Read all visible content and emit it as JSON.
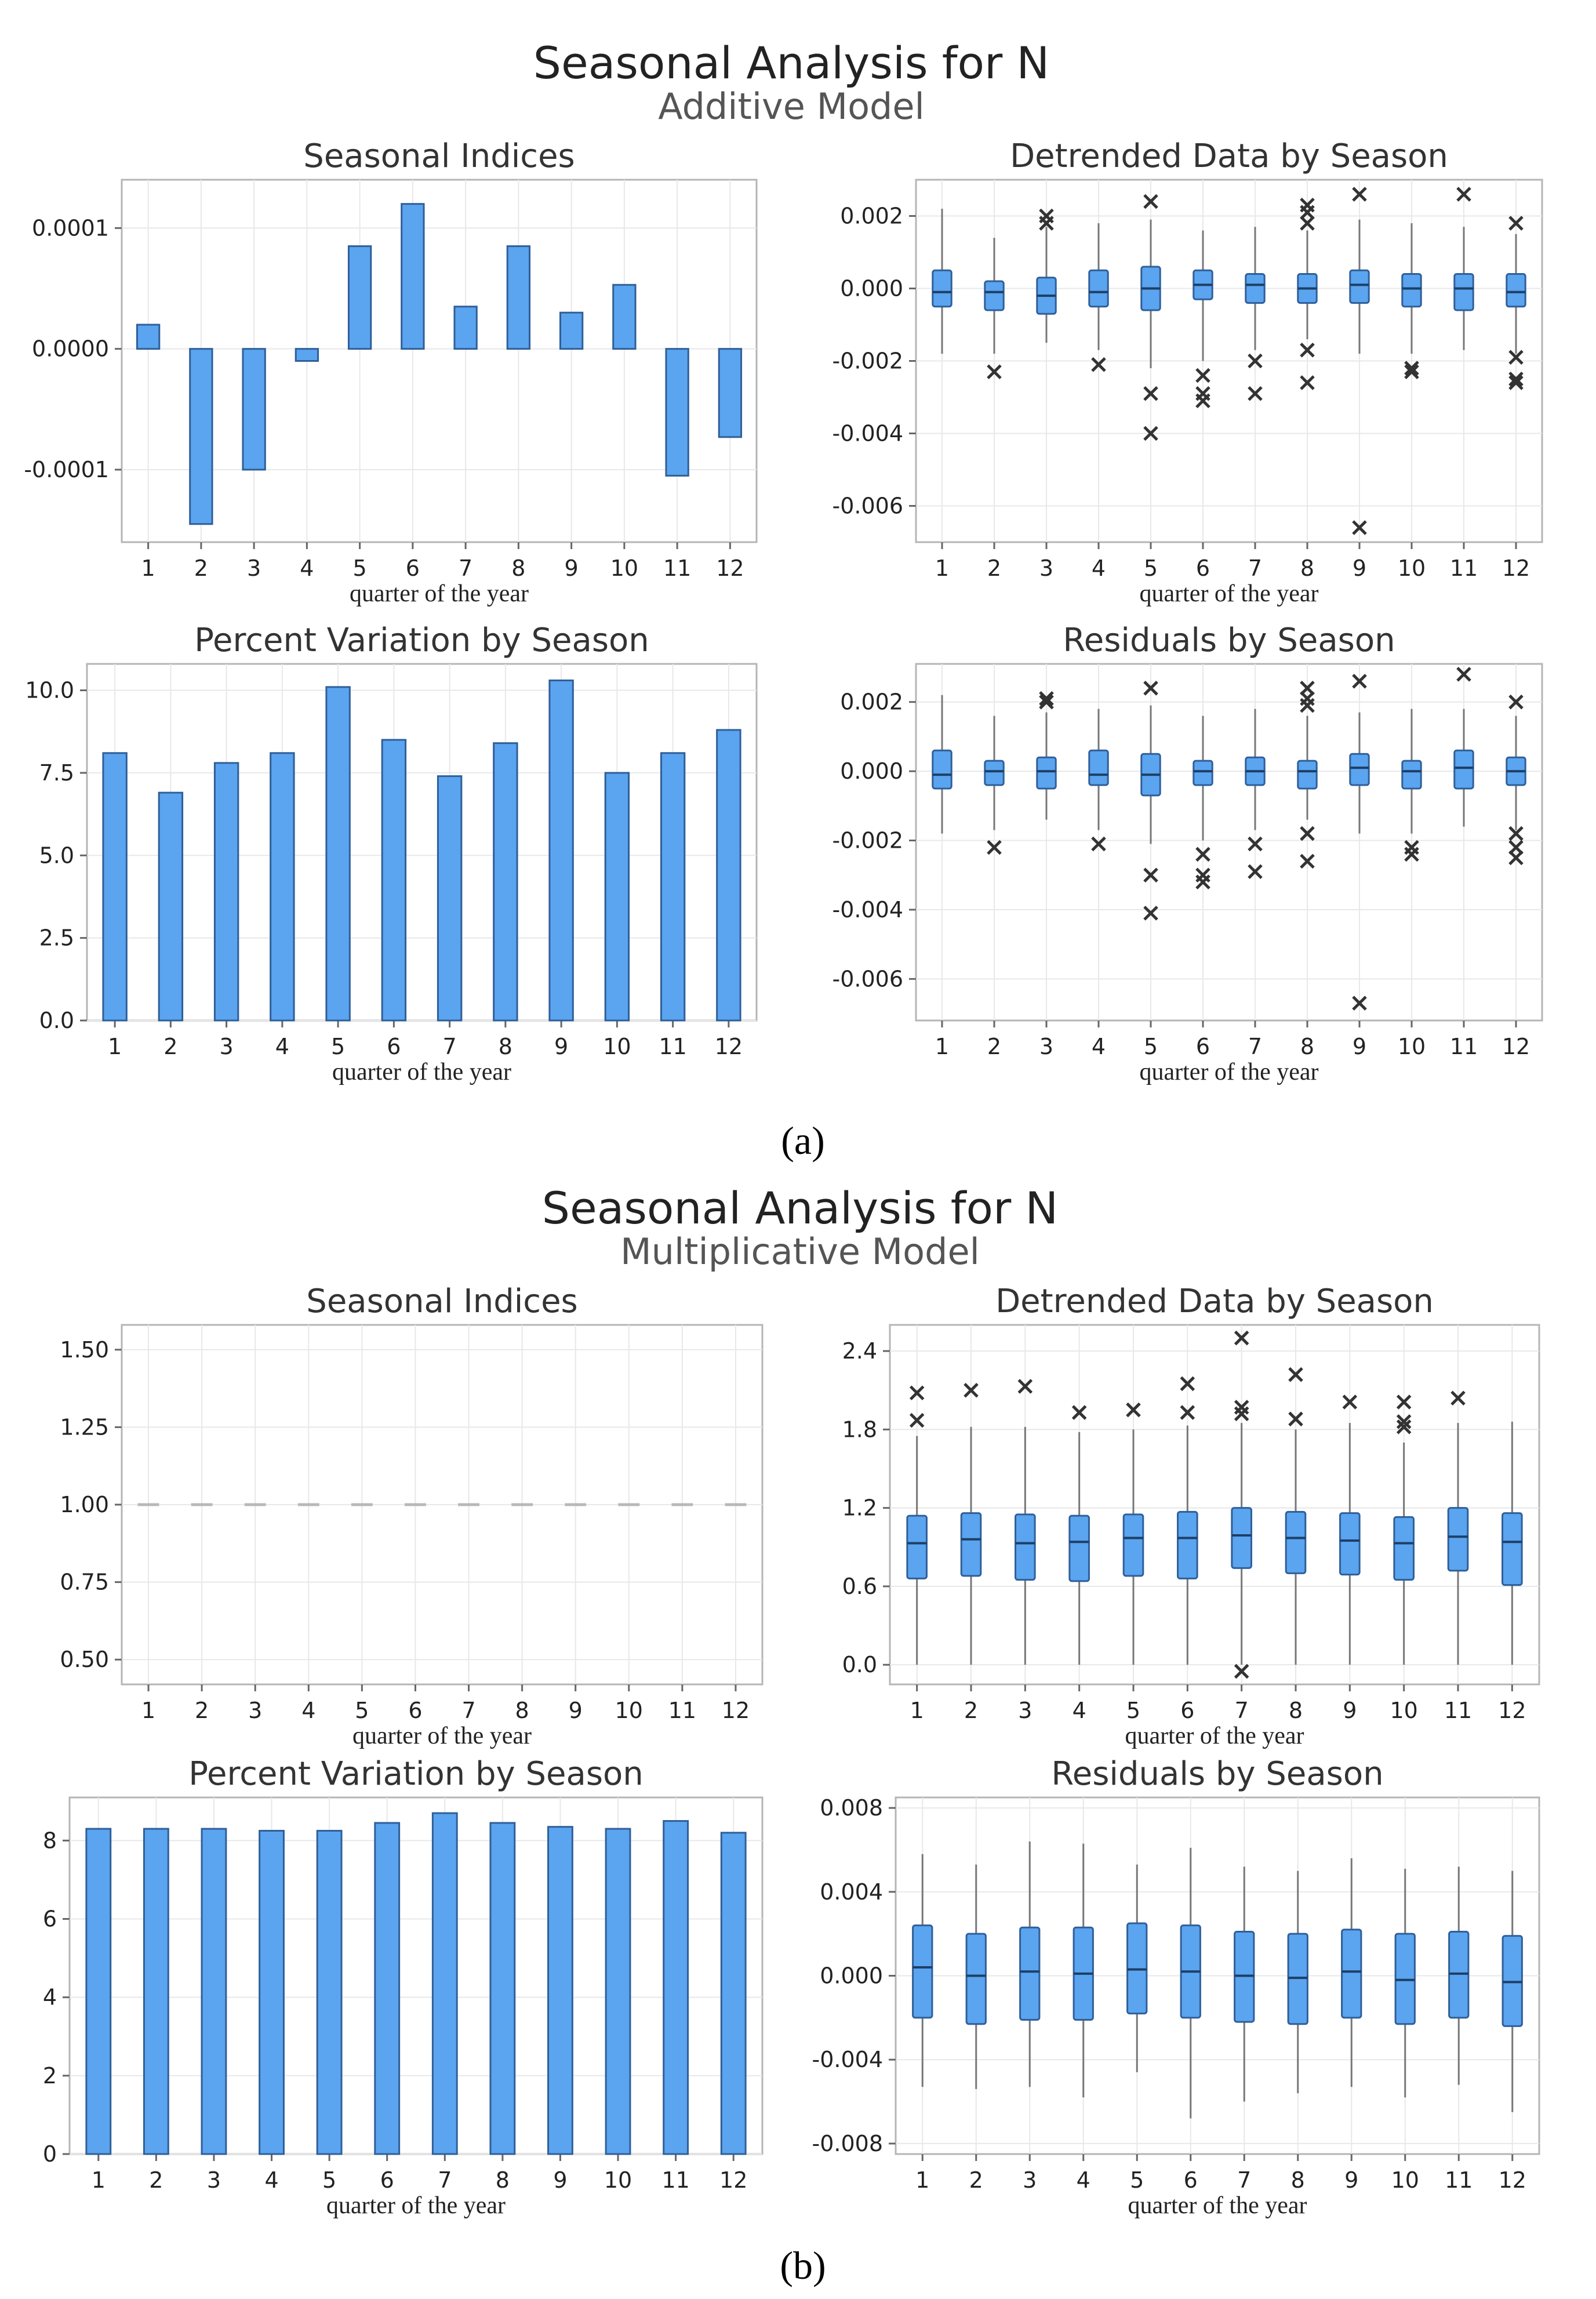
{
  "figure": {
    "label_a": "(a)",
    "label_b": "(b)"
  },
  "panel_a": {
    "title": "Seasonal Analysis for N",
    "subtitle": "Additive Model"
  },
  "panel_b": {
    "title": "Seasonal Analysis for N",
    "subtitle": "Multiplicative Model"
  },
  "chart_data": [
    {
      "id": "a_indices",
      "type": "bar",
      "title": "Seasonal Indices",
      "xlabel": "quarter of the year",
      "ylabel": "",
      "categories": [
        "1",
        "2",
        "3",
        "4",
        "5",
        "6",
        "7",
        "8",
        "9",
        "10",
        "11",
        "12"
      ],
      "values": [
        2e-05,
        -0.000145,
        -0.0001,
        -1e-05,
        8.5e-05,
        0.00012,
        3.5e-05,
        8.5e-05,
        3e-05,
        5.3e-05,
        -0.000105,
        -7.3e-05
      ],
      "ylim": [
        -0.00016,
        0.00014
      ],
      "yticks": [
        -0.0001,
        0.0,
        0.0001
      ],
      "ytick_labels": [
        "-0.0001",
        "0.0000",
        "0.0001"
      ]
    },
    {
      "id": "a_detrended",
      "type": "box",
      "title": "Detrended Data by Season",
      "xlabel": "quarter of the year",
      "categories": [
        "1",
        "2",
        "3",
        "4",
        "5",
        "6",
        "7",
        "8",
        "9",
        "10",
        "11",
        "12"
      ],
      "boxes": [
        {
          "whislo": -0.0018,
          "q1": -0.0005,
          "med": -0.0001,
          "q3": 0.0005,
          "whishi": 0.0022,
          "fliers": []
        },
        {
          "whislo": -0.0018,
          "q1": -0.0006,
          "med": -0.0001,
          "q3": 0.0002,
          "whishi": 0.0014,
          "fliers": [
            -0.0023
          ]
        },
        {
          "whislo": -0.0015,
          "q1": -0.0007,
          "med": -0.0002,
          "q3": 0.0003,
          "whishi": 0.0017,
          "fliers": [
            0.0018,
            0.002
          ]
        },
        {
          "whislo": -0.0017,
          "q1": -0.0005,
          "med": -0.0001,
          "q3": 0.0005,
          "whishi": 0.0018,
          "fliers": [
            -0.0021
          ]
        },
        {
          "whislo": -0.0022,
          "q1": -0.0006,
          "med": 0.0,
          "q3": 0.0006,
          "whishi": 0.0019,
          "fliers": [
            0.0024,
            -0.0029,
            -0.004
          ]
        },
        {
          "whislo": -0.002,
          "q1": -0.0003,
          "med": 0.0001,
          "q3": 0.0005,
          "whishi": 0.0016,
          "fliers": [
            -0.0024,
            -0.0029,
            -0.0031
          ]
        },
        {
          "whislo": -0.0017,
          "q1": -0.0004,
          "med": 0.0001,
          "q3": 0.0004,
          "whishi": 0.0017,
          "fliers": [
            -0.002,
            -0.0029
          ]
        },
        {
          "whislo": -0.0014,
          "q1": -0.0004,
          "med": 0.0,
          "q3": 0.0004,
          "whishi": 0.0016,
          "fliers": [
            0.0018,
            0.0021,
            0.0023,
            -0.0017,
            -0.0026
          ]
        },
        {
          "whislo": -0.0018,
          "q1": -0.0004,
          "med": 0.0001,
          "q3": 0.0005,
          "whishi": 0.0019,
          "fliers": [
            0.0026,
            -0.0066
          ]
        },
        {
          "whislo": -0.0018,
          "q1": -0.0005,
          "med": 0.0,
          "q3": 0.0004,
          "whishi": 0.0018,
          "fliers": [
            -0.0022,
            -0.0023
          ]
        },
        {
          "whislo": -0.0017,
          "q1": -0.0006,
          "med": 0.0,
          "q3": 0.0004,
          "whishi": 0.0017,
          "fliers": [
            0.0026
          ]
        },
        {
          "whislo": -0.0018,
          "q1": -0.0005,
          "med": -0.0001,
          "q3": 0.0004,
          "whishi": 0.0015,
          "fliers": [
            0.0018,
            -0.0019,
            -0.0025,
            -0.0026
          ]
        }
      ],
      "ylim": [
        -0.007,
        0.003
      ],
      "yticks": [
        -0.006,
        -0.004,
        -0.002,
        0.0,
        0.002
      ],
      "ytick_labels": [
        "-0.006",
        "-0.004",
        "-0.002",
        "0.000",
        "0.002"
      ]
    },
    {
      "id": "a_percent",
      "type": "bar",
      "title": "Percent Variation by Season",
      "xlabel": "quarter of the year",
      "categories": [
        "1",
        "2",
        "3",
        "4",
        "5",
        "6",
        "7",
        "8",
        "9",
        "10",
        "11",
        "12"
      ],
      "values": [
        8.1,
        6.9,
        7.8,
        8.1,
        10.1,
        8.5,
        7.4,
        8.4,
        10.3,
        7.5,
        8.1,
        8.8
      ],
      "ylim": [
        0,
        10.8
      ],
      "yticks": [
        0.0,
        2.5,
        5.0,
        7.5,
        10.0
      ],
      "ytick_labels": [
        "0.0",
        "2.5",
        "5.0",
        "7.5",
        "10.0"
      ]
    },
    {
      "id": "a_residuals",
      "type": "box",
      "title": "Residuals by Season",
      "xlabel": "quarter of the year",
      "categories": [
        "1",
        "2",
        "3",
        "4",
        "5",
        "6",
        "7",
        "8",
        "9",
        "10",
        "11",
        "12"
      ],
      "boxes": [
        {
          "whislo": -0.0018,
          "q1": -0.0005,
          "med": -0.0001,
          "q3": 0.0006,
          "whishi": 0.0022,
          "fliers": []
        },
        {
          "whislo": -0.0017,
          "q1": -0.0004,
          "med": 0.0,
          "q3": 0.0003,
          "whishi": 0.0016,
          "fliers": [
            -0.0022
          ]
        },
        {
          "whislo": -0.0014,
          "q1": -0.0005,
          "med": 0.0,
          "q3": 0.0004,
          "whishi": 0.0017,
          "fliers": [
            0.002,
            0.0021
          ]
        },
        {
          "whislo": -0.0017,
          "q1": -0.0004,
          "med": -0.0001,
          "q3": 0.0006,
          "whishi": 0.0018,
          "fliers": [
            -0.0021
          ]
        },
        {
          "whislo": -0.0021,
          "q1": -0.0007,
          "med": -0.0001,
          "q3": 0.0005,
          "whishi": 0.0019,
          "fliers": [
            0.0024,
            -0.003,
            -0.0041
          ]
        },
        {
          "whislo": -0.002,
          "q1": -0.0004,
          "med": 0.0,
          "q3": 0.0003,
          "whishi": 0.0016,
          "fliers": [
            -0.0024,
            -0.003,
            -0.0032
          ]
        },
        {
          "whislo": -0.0017,
          "q1": -0.0004,
          "med": 0.0,
          "q3": 0.0004,
          "whishi": 0.0018,
          "fliers": [
            -0.0021,
            -0.0029
          ]
        },
        {
          "whislo": -0.0014,
          "q1": -0.0005,
          "med": 0.0,
          "q3": 0.0003,
          "whishi": 0.0016,
          "fliers": [
            0.0019,
            0.0021,
            0.0024,
            -0.0018,
            -0.0026
          ]
        },
        {
          "whislo": -0.0018,
          "q1": -0.0004,
          "med": 0.0001,
          "q3": 0.0005,
          "whishi": 0.0017,
          "fliers": [
            0.0026,
            -0.0067
          ]
        },
        {
          "whislo": -0.0018,
          "q1": -0.0005,
          "med": 0.0,
          "q3": 0.0003,
          "whishi": 0.0018,
          "fliers": [
            -0.0022,
            -0.0024
          ]
        },
        {
          "whislo": -0.0016,
          "q1": -0.0005,
          "med": 0.0001,
          "q3": 0.0006,
          "whishi": 0.0018,
          "fliers": [
            0.0028
          ]
        },
        {
          "whislo": -0.0017,
          "q1": -0.0004,
          "med": 0.0,
          "q3": 0.0004,
          "whishi": 0.0016,
          "fliers": [
            0.002,
            -0.0018,
            -0.0022,
            -0.0025
          ]
        }
      ],
      "ylim": [
        -0.0072,
        0.0031
      ],
      "yticks": [
        -0.006,
        -0.004,
        -0.002,
        0.0,
        0.002
      ],
      "ytick_labels": [
        "-0.006",
        "-0.004",
        "-0.002",
        "0.000",
        "0.002"
      ]
    },
    {
      "id": "b_indices",
      "type": "line",
      "title": "Seasonal Indices",
      "xlabel": "quarter of the year",
      "categories": [
        "1",
        "2",
        "3",
        "4",
        "5",
        "6",
        "7",
        "8",
        "9",
        "10",
        "11",
        "12"
      ],
      "values": [
        1.0,
        1.0,
        1.0,
        1.0,
        1.0,
        1.0,
        1.0,
        1.0,
        1.0,
        1.0,
        1.0,
        1.0
      ],
      "ylim": [
        0.42,
        1.58
      ],
      "yticks": [
        0.5,
        0.75,
        1.0,
        1.25,
        1.5
      ],
      "ytick_labels": [
        "0.50",
        "0.75",
        "1.00",
        "1.25",
        "1.50"
      ]
    },
    {
      "id": "b_detrended",
      "type": "box",
      "title": "Detrended Data by Season",
      "xlabel": "quarter of the year",
      "categories": [
        "1",
        "2",
        "3",
        "4",
        "5",
        "6",
        "7",
        "8",
        "9",
        "10",
        "11",
        "12"
      ],
      "boxes": [
        {
          "whislo": 0.0,
          "q1": 0.66,
          "med": 0.93,
          "q3": 1.14,
          "whishi": 1.75,
          "fliers": [
            1.87,
            2.08
          ]
        },
        {
          "whislo": 0.0,
          "q1": 0.68,
          "med": 0.96,
          "q3": 1.16,
          "whishi": 1.82,
          "fliers": [
            2.1
          ]
        },
        {
          "whislo": 0.0,
          "q1": 0.65,
          "med": 0.93,
          "q3": 1.15,
          "whishi": 1.82,
          "fliers": [
            2.13
          ]
        },
        {
          "whislo": 0.0,
          "q1": 0.64,
          "med": 0.94,
          "q3": 1.14,
          "whishi": 1.78,
          "fliers": [
            1.93
          ]
        },
        {
          "whislo": 0.0,
          "q1": 0.68,
          "med": 0.97,
          "q3": 1.15,
          "whishi": 1.8,
          "fliers": [
            1.95
          ]
        },
        {
          "whislo": 0.0,
          "q1": 0.66,
          "med": 0.97,
          "q3": 1.17,
          "whishi": 1.83,
          "fliers": [
            1.93,
            2.15
          ]
        },
        {
          "whislo": 0.0,
          "q1": 0.74,
          "med": 0.99,
          "q3": 1.2,
          "whishi": 1.85,
          "fliers": [
            1.92,
            1.97,
            2.5,
            -0.05
          ]
        },
        {
          "whislo": 0.0,
          "q1": 0.7,
          "med": 0.97,
          "q3": 1.17,
          "whishi": 1.8,
          "fliers": [
            1.88,
            2.22
          ]
        },
        {
          "whislo": 0.0,
          "q1": 0.69,
          "med": 0.95,
          "q3": 1.16,
          "whishi": 1.85,
          "fliers": [
            2.01
          ]
        },
        {
          "whislo": 0.0,
          "q1": 0.65,
          "med": 0.93,
          "q3": 1.13,
          "whishi": 1.7,
          "fliers": [
            1.82,
            1.86,
            2.01
          ]
        },
        {
          "whislo": 0.0,
          "q1": 0.72,
          "med": 0.98,
          "q3": 1.2,
          "whishi": 1.85,
          "fliers": [
            2.04
          ]
        },
        {
          "whislo": 0.0,
          "q1": 0.61,
          "med": 0.94,
          "q3": 1.16,
          "whishi": 1.86,
          "fliers": []
        }
      ],
      "ylim": [
        -0.15,
        2.6
      ],
      "yticks": [
        0.0,
        0.6,
        1.2,
        1.8,
        2.4
      ],
      "ytick_labels": [
        "0.0",
        "0.6",
        "1.2",
        "1.8",
        "2.4"
      ]
    },
    {
      "id": "b_percent",
      "type": "bar",
      "title": "Percent Variation by Season",
      "xlabel": "quarter of the year",
      "categories": [
        "1",
        "2",
        "3",
        "4",
        "5",
        "6",
        "7",
        "8",
        "9",
        "10",
        "11",
        "12"
      ],
      "values": [
        8.3,
        8.3,
        8.3,
        8.25,
        8.25,
        8.45,
        8.7,
        8.45,
        8.35,
        8.3,
        8.5,
        8.2
      ],
      "ylim": [
        0,
        9.1
      ],
      "yticks": [
        0,
        2,
        4,
        6,
        8
      ],
      "ytick_labels": [
        "0",
        "2",
        "4",
        "6",
        "8"
      ]
    },
    {
      "id": "b_residuals",
      "type": "box",
      "title": "Residuals by Season",
      "xlabel": "quarter of the year",
      "categories": [
        "1",
        "2",
        "3",
        "4",
        "5",
        "6",
        "7",
        "8",
        "9",
        "10",
        "11",
        "12"
      ],
      "boxes": [
        {
          "whislo": -0.0053,
          "q1": -0.002,
          "med": 0.0004,
          "q3": 0.0024,
          "whishi": 0.0058,
          "fliers": []
        },
        {
          "whislo": -0.0054,
          "q1": -0.0023,
          "med": 0.0,
          "q3": 0.002,
          "whishi": 0.0053,
          "fliers": []
        },
        {
          "whislo": -0.0053,
          "q1": -0.0021,
          "med": 0.0002,
          "q3": 0.0023,
          "whishi": 0.0064,
          "fliers": []
        },
        {
          "whislo": -0.0058,
          "q1": -0.0021,
          "med": 0.0001,
          "q3": 0.0023,
          "whishi": 0.0063,
          "fliers": []
        },
        {
          "whislo": -0.0046,
          "q1": -0.0018,
          "med": 0.0003,
          "q3": 0.0025,
          "whishi": 0.0053,
          "fliers": []
        },
        {
          "whislo": -0.0068,
          "q1": -0.002,
          "med": 0.0002,
          "q3": 0.0024,
          "whishi": 0.0061,
          "fliers": []
        },
        {
          "whislo": -0.006,
          "q1": -0.0022,
          "med": 0.0,
          "q3": 0.0021,
          "whishi": 0.0052,
          "fliers": []
        },
        {
          "whislo": -0.0056,
          "q1": -0.0023,
          "med": -0.0001,
          "q3": 0.002,
          "whishi": 0.005,
          "fliers": []
        },
        {
          "whislo": -0.0053,
          "q1": -0.002,
          "med": 0.0002,
          "q3": 0.0022,
          "whishi": 0.0056,
          "fliers": []
        },
        {
          "whislo": -0.0058,
          "q1": -0.0023,
          "med": -0.0002,
          "q3": 0.002,
          "whishi": 0.0051,
          "fliers": []
        },
        {
          "whislo": -0.0052,
          "q1": -0.002,
          "med": 0.0001,
          "q3": 0.0021,
          "whishi": 0.0052,
          "fliers": []
        },
        {
          "whislo": -0.0065,
          "q1": -0.0024,
          "med": -0.0003,
          "q3": 0.0019,
          "whishi": 0.005,
          "fliers": []
        }
      ],
      "ylim": [
        -0.0085,
        0.0085
      ],
      "yticks": [
        -0.008,
        -0.004,
        0.0,
        0.004,
        0.008
      ],
      "ytick_labels": [
        "-0.008",
        "-0.004",
        "0.000",
        "0.004",
        "0.008"
      ]
    }
  ]
}
